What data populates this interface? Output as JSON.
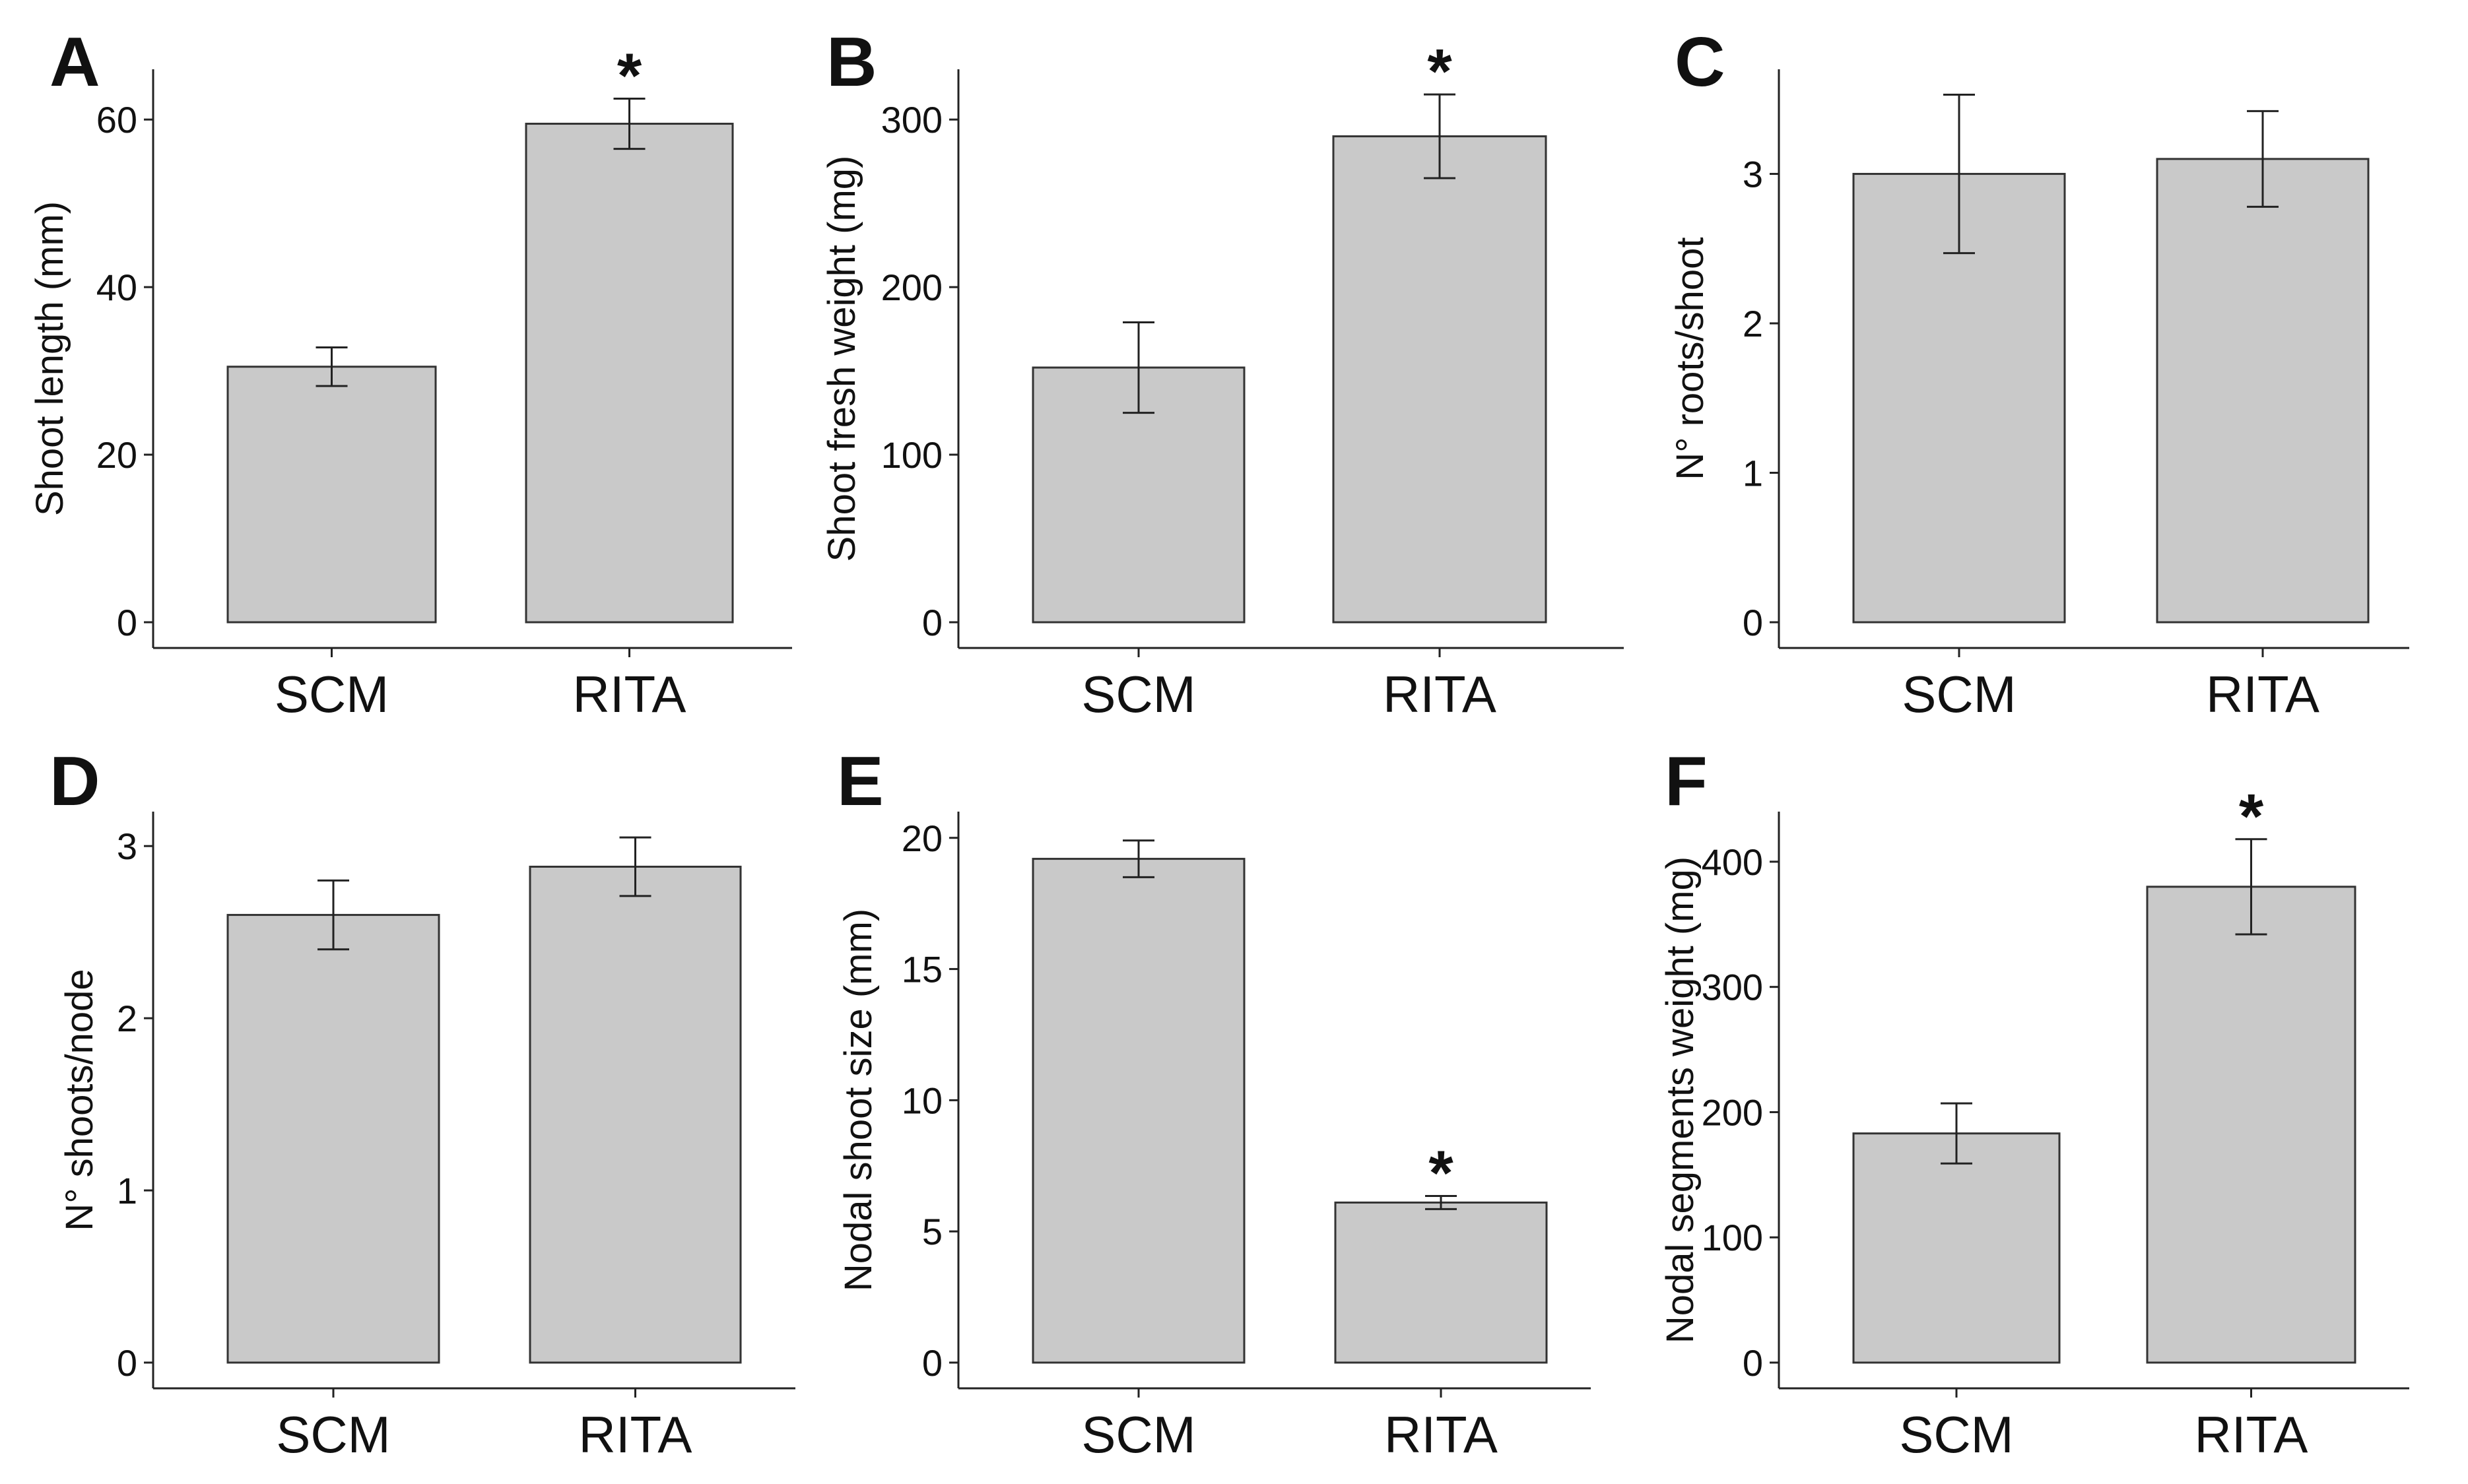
{
  "figure": {
    "background": "#ffffff",
    "bar_fill": "#c9c9c9",
    "bar_stroke": "#333333"
  },
  "chart_data": [
    {
      "panel": "A",
      "type": "bar",
      "categories": [
        "SCM",
        "RITA"
      ],
      "values": [
        30.5,
        59.5
      ],
      "errors": [
        2.3,
        3.0
      ],
      "significance": [
        "",
        "*"
      ],
      "ylabel": "Shoot length (mm)",
      "yticks": [
        0,
        20,
        40,
        60
      ],
      "ylim": [
        0,
        66
      ]
    },
    {
      "panel": "B",
      "type": "bar",
      "categories": [
        "SCM",
        "RITA"
      ],
      "values": [
        152,
        290
      ],
      "errors": [
        27,
        25
      ],
      "significance": [
        "",
        "*"
      ],
      "ylabel": "Shoot fresh weight (mg)",
      "yticks": [
        0,
        100,
        200,
        300
      ],
      "ylim": [
        0,
        330
      ]
    },
    {
      "panel": "C",
      "type": "bar",
      "categories": [
        "SCM",
        "RITA"
      ],
      "values": [
        3.0,
        3.1
      ],
      "errors": [
        0.53,
        0.32
      ],
      "significance": [
        "",
        ""
      ],
      "ylabel": "N° roots/shoot",
      "yticks": [
        0,
        1,
        2,
        3
      ],
      "ylim": [
        0,
        3.7
      ]
    },
    {
      "panel": "D",
      "type": "bar",
      "categories": [
        "SCM",
        "RITA"
      ],
      "values": [
        2.6,
        2.88
      ],
      "errors": [
        0.2,
        0.17
      ],
      "significance": [
        "",
        ""
      ],
      "ylabel": "N° shoots/node",
      "yticks": [
        0,
        1,
        2,
        3
      ],
      "ylim": [
        0,
        3.2
      ]
    },
    {
      "panel": "E",
      "type": "bar",
      "categories": [
        "SCM",
        "RITA"
      ],
      "values": [
        19.2,
        6.1
      ],
      "errors": [
        0.7,
        0.25
      ],
      "significance": [
        "",
        "*"
      ],
      "ylabel": "Nodal shoot size (mm)",
      "yticks": [
        0,
        5,
        10,
        15,
        20
      ],
      "ylim": [
        0,
        21
      ]
    },
    {
      "panel": "F",
      "type": "bar",
      "categories": [
        "SCM",
        "RITA"
      ],
      "values": [
        183,
        380
      ],
      "errors": [
        24,
        38
      ],
      "significance": [
        "",
        "*"
      ],
      "ylabel": "Nodal segments weight (mg)",
      "yticks": [
        0,
        100,
        200,
        300,
        400
      ],
      "ylim": [
        0,
        440
      ]
    }
  ]
}
